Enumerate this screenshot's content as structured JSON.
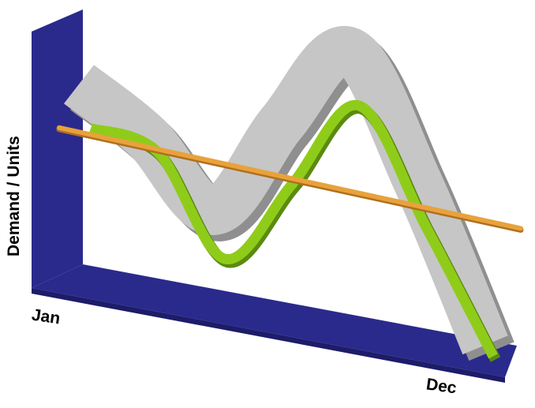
{
  "chart_data": {
    "type": "line",
    "style": "3d-ribbon",
    "ylabel": "Demand / Units",
    "xlabel": "",
    "x_ticks": [
      "Jan",
      "Dec"
    ],
    "grid": false,
    "series": [
      {
        "role": "demand-band",
        "values": [
          0.72,
          0.55,
          0.32,
          0.68,
          0.95,
          0.55,
          0.08
        ]
      },
      {
        "role": "demand-forecast",
        "values": [
          0.62,
          0.56,
          0.16,
          0.52,
          0.86,
          0.45,
          0.05
        ]
      },
      {
        "role": "trend",
        "values": [
          0.58,
          0.42
        ]
      }
    ],
    "colors": {
      "axis_wall": "#2a2a8c",
      "axis_wall_top": "#4a4ab0",
      "band_face": "#c6c6c6",
      "band_edge": "#8f8f8f",
      "forecast": "#8fcc1a",
      "forecast_shadow": "#5a8a10",
      "trend": "#e8a23c",
      "trend_shadow": "#b06f1e"
    }
  }
}
